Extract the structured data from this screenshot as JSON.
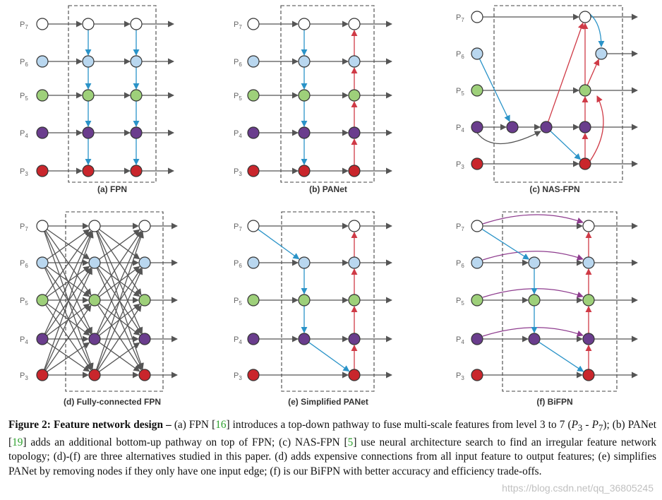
{
  "panels": [
    {
      "key": "a",
      "title": "(a) FPN"
    },
    {
      "key": "b",
      "title": "(b) PANet"
    },
    {
      "key": "c",
      "title": "(c) NAS-FPN"
    },
    {
      "key": "d",
      "title": "(d) Fully-connected FPN"
    },
    {
      "key": "e",
      "title": "(e) Simplified PANet"
    },
    {
      "key": "f",
      "title": "(f) BiFPN"
    }
  ],
  "levels": [
    {
      "letter": "P",
      "sub": "7"
    },
    {
      "letter": "P",
      "sub": "6"
    },
    {
      "letter": "P",
      "sub": "5"
    },
    {
      "letter": "P",
      "sub": "4"
    },
    {
      "letter": "P",
      "sub": "3"
    }
  ],
  "colors": {
    "p7": "#ffffff",
    "p6": "#b9d7ef",
    "p5": "#9ed07a",
    "p4": "#6a3d8d",
    "p3": "#c9262c",
    "topdown": "#2a93c8",
    "bottomup": "#cf3a46",
    "skip": "#8e3c8e",
    "lateral": "#555555",
    "dashed_box": "#444444"
  },
  "caption": {
    "fig": "Figure 2:",
    "bold": "Feature network design –",
    "t1": " (a) FPN [",
    "r1": "16",
    "t2": "] introduces a top-down pathway to fuse multi-scale features from level 3 to 7 (",
    "m1": "P",
    "m1sub": "3",
    "t3": " - ",
    "m2": "P",
    "m2sub": "7",
    "t4": "); (b) PANet [",
    "r2": "19",
    "t5": "] adds an additional bottom-up pathway on top of FPN; (c) NAS-FPN [",
    "r3": "5",
    "t6": "] use neural architecture search to find an irregular feature network topology; (d)-(f) are three alternatives studied in this paper. (d) adds expensive connections from all input feature to output features; (e) simplifies PANet by removing nodes if they only have one input edge; (f) is our BiFPN with better accuracy and efficiency trade-offs."
  },
  "watermark": "https://blog.csdn.net/qq_36805245"
}
